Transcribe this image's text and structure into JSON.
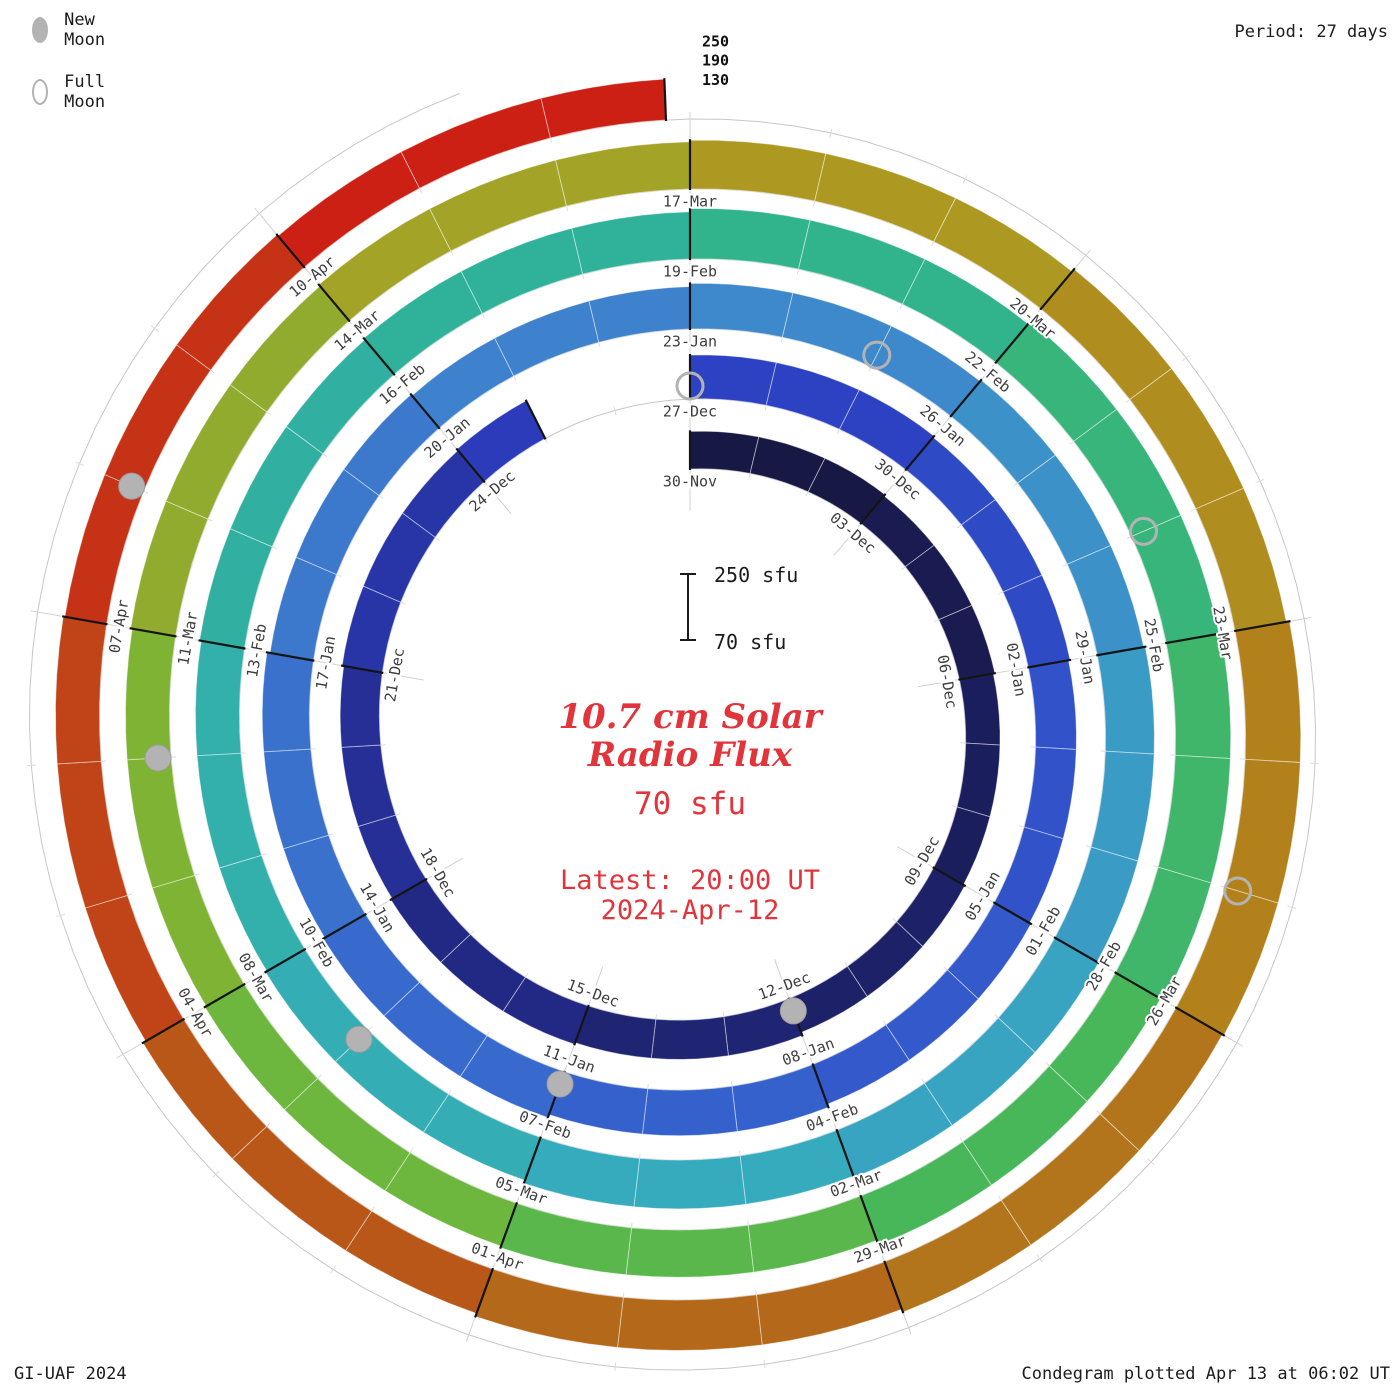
{
  "header": {
    "legend": [
      {
        "label": "New Moon",
        "type": "new"
      },
      {
        "label": "Full Moon",
        "type": "full"
      }
    ],
    "period_label": "Period: 27 days"
  },
  "footer": {
    "left": "GI-UAF 2024",
    "right": "Condegram plotted Apr 13 at 06:02 UT"
  },
  "center": {
    "title_line1": "10.7 cm Solar",
    "title_line2": "Radio Flux",
    "current_value": "70 sfu",
    "latest_line1": "Latest: 20:00 UT",
    "latest_line2": "2024-Apr-12",
    "scalebar": {
      "top_label": "250 sfu",
      "bottom_label": "70 sfu"
    }
  },
  "chart_data": {
    "type": "spiral-bar-condegram",
    "title": "10.7 cm Solar Radio Flux",
    "flux_unit": "sfu",
    "start_date": "2023-11-30",
    "days_per_revolution": 27,
    "sample_interval_days": 3,
    "total_days": 134.83,
    "radial_range": [
      70,
      250
    ],
    "radial_axis": [
      {
        "label": "250",
        "value": 250
      },
      {
        "label": "190",
        "value": 190
      },
      {
        "label": "130",
        "value": 130
      }
    ],
    "categories": [
      "30-Nov",
      "03-Dec",
      "06-Dec",
      "09-Dec",
      "12-Dec",
      "15-Dec",
      "18-Dec",
      "21-Dec",
      "24-Dec",
      "27-Dec",
      "30-Dec",
      "02-Jan",
      "05-Jan",
      "08-Jan",
      "11-Jan",
      "14-Jan",
      "17-Jan",
      "20-Jan",
      "23-Jan",
      "26-Jan",
      "29-Jan",
      "01-Feb",
      "04-Feb",
      "07-Feb",
      "10-Feb",
      "13-Feb",
      "16-Feb",
      "19-Feb",
      "22-Feb",
      "25-Feb",
      "28-Feb",
      "02-Mar",
      "05-Mar",
      "08-Mar",
      "11-Mar",
      "14-Mar",
      "17-Mar",
      "20-Mar",
      "23-Mar",
      "26-Mar",
      "29-Mar",
      "01-Apr",
      "04-Apr",
      "07-Apr",
      "10-Apr"
    ],
    "values": [
      125,
      120,
      115,
      120,
      130,
      135,
      130,
      135,
      140,
      145,
      140,
      135,
      140,
      150,
      160,
      155,
      145,
      140,
      150,
      155,
      160,
      165,
      160,
      150,
      145,
      150,
      155,
      165,
      175,
      180,
      170,
      155,
      150,
      145,
      150,
      155,
      160,
      170,
      180,
      175,
      165,
      155,
      145,
      140,
      135
    ],
    "gap_days": [
      "2023-12-25",
      "2023-12-26"
    ],
    "moons": [
      {
        "date": "2023-12-12",
        "phase": "new"
      },
      {
        "date": "2023-12-27",
        "phase": "full"
      },
      {
        "date": "2024-01-11",
        "phase": "new"
      },
      {
        "date": "2024-01-25",
        "phase": "full"
      },
      {
        "date": "2024-02-09",
        "phase": "new"
      },
      {
        "date": "2024-02-24",
        "phase": "full"
      },
      {
        "date": "2024-03-10",
        "phase": "new"
      },
      {
        "date": "2024-03-25",
        "phase": "full"
      },
      {
        "date": "2024-04-08",
        "phase": "new"
      }
    ],
    "color_stops": [
      [
        0,
        "#17173f"
      ],
      [
        14,
        "#1f2475"
      ],
      [
        27,
        "#2c3ec2"
      ],
      [
        40,
        "#3560cc"
      ],
      [
        54,
        "#3f85cc"
      ],
      [
        67,
        "#37abc0"
      ],
      [
        81,
        "#2eb394"
      ],
      [
        91,
        "#45b75c"
      ],
      [
        99,
        "#76b737"
      ],
      [
        108,
        "#ab9f24"
      ],
      [
        115,
        "#b2831c"
      ],
      [
        122,
        "#b4661a"
      ],
      [
        129,
        "#c33b16"
      ],
      [
        135,
        "#d01713"
      ]
    ],
    "latest": {
      "flux_sfu": 70,
      "time": "20:00 UT",
      "date": "2024-Apr-12"
    }
  },
  "colors": {
    "text_red": "#e1343b",
    "grid": "#c7c7c7",
    "tick": "#d2d2d2",
    "divider": "#141414",
    "moon_gray": "#b3b3b3",
    "label_gray": "#3e3e3e"
  }
}
